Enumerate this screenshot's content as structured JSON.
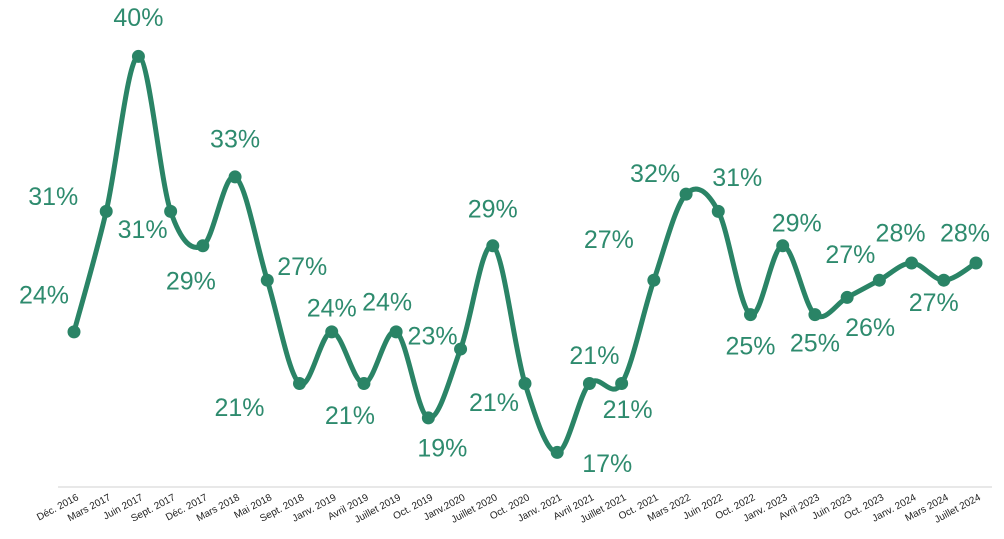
{
  "chart_data": {
    "type": "line",
    "categories": [
      "Déc. 2016",
      "Mars 2017",
      "Juin 2017",
      "Sept. 2017",
      "Déc. 2017",
      "Mars 2018",
      "Mai 2018",
      "Sept. 2018",
      "Janv. 2019",
      "Avril 2019",
      "Juillet 2019",
      "Oct. 2019",
      "Janv.2020",
      "Juillet 2020",
      "Oct. 2020",
      "Janv. 2021",
      "Avril 2021",
      "Juillet 2021",
      "Oct. 2021",
      "Mars 2022",
      "Juin 2022",
      "Oct. 2022",
      "Janv. 2023",
      "Avril 2023",
      "Juin 2023",
      "Oct. 2023",
      "Janv. 2024",
      "Mars 2024",
      "Juillet 2024"
    ],
    "values": [
      24,
      31,
      40,
      31,
      29,
      33,
      27,
      21,
      24,
      21,
      24,
      19,
      23,
      29,
      21,
      17,
      21,
      21,
      27,
      32,
      31,
      25,
      29,
      25,
      26,
      27,
      28,
      27,
      28
    ],
    "value_labels": [
      "24%",
      "31%",
      "40%",
      "31%",
      "29%",
      "33%",
      "27%",
      "21%",
      "24%",
      "21%",
      "24%",
      "19%",
      "23%",
      "29%",
      "21%",
      "17%",
      "21%",
      "21%",
      "27%",
      "32%",
      "31%",
      "25%",
      "29%",
      "25%",
      "26%",
      "27%",
      "28%",
      "27%",
      "28%"
    ],
    "color": "#2a8466",
    "ylim": [
      14,
      42
    ]
  }
}
